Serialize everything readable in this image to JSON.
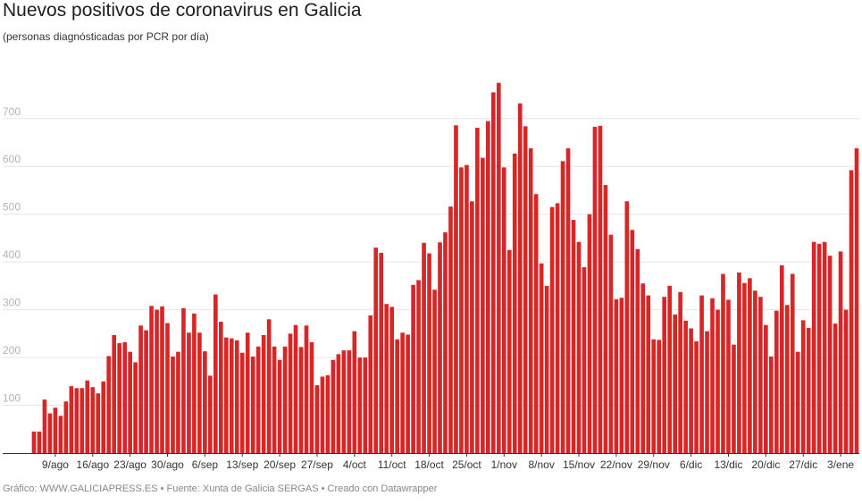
{
  "header": {
    "title": "Nuevos positivos de coronavirus en Galicia",
    "subtitle": "(personas diagnósticadas por PCR por día)"
  },
  "footer": {
    "credit": "Gráfico: WWW.GALICIAPRESS.ES • Fuente: Xunta de Galicia SERGAS • Creado con Datawrapper"
  },
  "colors": {
    "bar": "#d62728",
    "grid": "#e6e6e6",
    "axis": "#333333"
  },
  "chart_data": {
    "type": "bar",
    "title": "Nuevos positivos de coronavirus en Galicia",
    "subtitle": "(personas diagnósticadas por PCR por día)",
    "xlabel": "",
    "ylabel": "",
    "ylim": [
      0,
      780
    ],
    "grid": true,
    "y_ticks": [
      100,
      200,
      300,
      400,
      500,
      600,
      700
    ],
    "x_ticks": [
      {
        "label": "9/ago",
        "index": 4
      },
      {
        "label": "16/ago",
        "index": 11
      },
      {
        "label": "23/ago",
        "index": 18
      },
      {
        "label": "30/ago",
        "index": 25
      },
      {
        "label": "6/sep",
        "index": 32
      },
      {
        "label": "13/sep",
        "index": 39
      },
      {
        "label": "20/sep",
        "index": 46
      },
      {
        "label": "27/sep",
        "index": 53
      },
      {
        "label": "4/oct",
        "index": 60
      },
      {
        "label": "11/oct",
        "index": 67
      },
      {
        "label": "18/oct",
        "index": 74
      },
      {
        "label": "25/oct",
        "index": 81
      },
      {
        "label": "1/nov",
        "index": 88
      },
      {
        "label": "8/nov",
        "index": 95
      },
      {
        "label": "15/nov",
        "index": 102
      },
      {
        "label": "22/nov",
        "index": 109
      },
      {
        "label": "29/nov",
        "index": 116
      },
      {
        "label": "6/dic",
        "index": 123
      },
      {
        "label": "13/dic",
        "index": 130
      },
      {
        "label": "20/dic",
        "index": 137
      },
      {
        "label": "27/dic",
        "index": 144
      },
      {
        "label": "3/ene",
        "index": 151
      }
    ],
    "values": [
      45,
      45,
      112,
      83,
      95,
      78,
      108,
      140,
      136,
      136,
      152,
      138,
      125,
      150,
      203,
      247,
      230,
      232,
      212,
      190,
      267,
      257,
      308,
      300,
      307,
      272,
      202,
      212,
      303,
      252,
      292,
      252,
      213,
      162,
      332,
      275,
      242,
      240,
      236,
      210,
      252,
      202,
      223,
      247,
      280,
      223,
      195,
      223,
      250,
      268,
      222,
      267,
      232,
      142,
      160,
      163,
      195,
      207,
      215,
      215,
      255,
      200,
      200,
      288,
      430,
      419,
      312,
      306,
      238,
      252,
      248,
      352,
      362,
      440,
      418,
      342,
      441,
      462,
      516,
      686,
      598,
      603,
      527,
      681,
      618,
      695,
      755,
      775,
      598,
      425,
      627,
      732,
      684,
      638,
      542,
      397,
      350,
      515,
      523,
      611,
      638,
      488,
      442,
      389,
      500,
      683,
      685,
      561,
      457,
      322,
      325,
      527,
      467,
      427,
      355,
      330,
      238,
      237,
      327,
      350,
      290,
      337,
      277,
      261,
      234,
      330,
      255,
      324,
      300,
      375,
      321,
      227,
      378,
      356,
      366,
      340,
      327,
      268,
      202,
      298,
      393,
      310,
      375,
      212,
      278,
      262,
      442,
      438,
      442,
      413,
      271,
      422,
      300,
      592,
      638
    ],
    "series": [
      {
        "name": "Nuevos positivos",
        "color": "#d62728"
      }
    ]
  }
}
